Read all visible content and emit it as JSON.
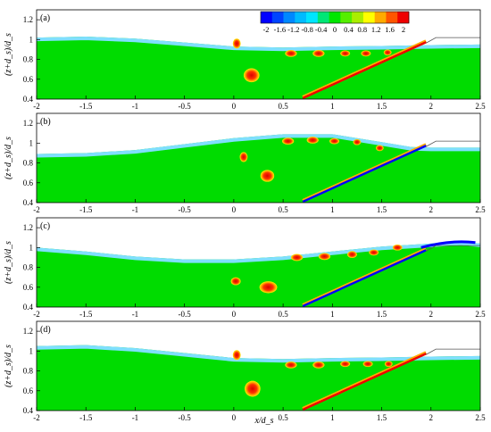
{
  "chart_data": {
    "type": "heatmap",
    "xlabel": "x/d_s",
    "ylabel": "(z+d_s)/d_s",
    "xlim": [
      -2,
      2.5
    ],
    "ylim": [
      0.4,
      1.3
    ],
    "xticks": [
      "-2",
      "-1.5",
      "-1",
      "-0.5",
      "0",
      "0.5",
      "1",
      "1.5",
      "2",
      "2.5"
    ],
    "yticks": [
      "0.4",
      "0.6",
      "0.8",
      "1",
      "1.2"
    ],
    "colorbar": {
      "ticks": [
        "-2",
        "-1.6",
        "-1.2",
        "-0.8",
        "-0.4",
        "0",
        "0.4",
        "0.8",
        "1.2",
        "1.6",
        "2"
      ],
      "colors": [
        "#0000ff",
        "#0044ff",
        "#0088ff",
        "#00bbff",
        "#00e5ff",
        "#00e676",
        "#00e600",
        "#55ee00",
        "#aaee00",
        "#ffff00",
        "#ffaa00",
        "#ff5500",
        "#ee0000"
      ]
    },
    "colors": {
      "background_water": "#00dc00",
      "surface_layer": "#7fdfff",
      "strong_positive": "#ee0000",
      "positive_ring": "#ffa500",
      "strong_negative": "#0000ff"
    },
    "panels": [
      {
        "label": "(a)",
        "surface": [
          [
            -2,
            1.02
          ],
          [
            -1.5,
            1.03
          ],
          [
            -1,
            1.01
          ],
          [
            -0.5,
            0.97
          ],
          [
            0,
            0.93
          ],
          [
            0.5,
            0.92
          ],
          [
            1,
            0.93
          ],
          [
            1.5,
            0.935
          ],
          [
            2,
            0.945
          ],
          [
            2.5,
            0.95
          ]
        ],
        "vortices": [
          {
            "x": 0.03,
            "y": 0.96,
            "rx": 0.04,
            "ry": 0.05
          },
          {
            "x": 0.18,
            "y": 0.64,
            "rx": 0.08,
            "ry": 0.07
          },
          {
            "x": 0.58,
            "y": 0.86,
            "rx": 0.06,
            "ry": 0.035
          },
          {
            "x": 0.86,
            "y": 0.86,
            "rx": 0.06,
            "ry": 0.035
          },
          {
            "x": 1.13,
            "y": 0.86,
            "rx": 0.05,
            "ry": 0.03
          },
          {
            "x": 1.34,
            "y": 0.86,
            "rx": 0.05,
            "ry": 0.03
          },
          {
            "x": 1.56,
            "y": 0.87,
            "rx": 0.04,
            "ry": 0.03
          }
        ],
        "shear_band": {
          "x": [
            0.7,
            1.9
          ],
          "y": [
            0.42,
            0.93
          ],
          "sign": "positive"
        }
      },
      {
        "label": "(b)",
        "surface": [
          [
            -2,
            0.89
          ],
          [
            -1.5,
            0.9
          ],
          [
            -1,
            0.93
          ],
          [
            -0.5,
            0.99
          ],
          [
            0,
            1.05
          ],
          [
            0.5,
            1.09
          ],
          [
            1,
            1.09
          ],
          [
            1.5,
            1.01
          ],
          [
            1.8,
            0.96
          ],
          [
            2,
            0.955
          ],
          [
            2.5,
            0.955
          ]
        ],
        "vortices": [
          {
            "x": 0.1,
            "y": 0.86,
            "rx": 0.04,
            "ry": 0.05
          },
          {
            "x": 0.34,
            "y": 0.67,
            "rx": 0.07,
            "ry": 0.06
          },
          {
            "x": 0.55,
            "y": 1.02,
            "rx": 0.06,
            "ry": 0.035
          },
          {
            "x": 0.8,
            "y": 1.03,
            "rx": 0.06,
            "ry": 0.035
          },
          {
            "x": 1.02,
            "y": 1.02,
            "rx": 0.05,
            "ry": 0.03
          },
          {
            "x": 1.25,
            "y": 1.01,
            "rx": 0.04,
            "ry": 0.03
          },
          {
            "x": 1.48,
            "y": 0.95,
            "rx": 0.04,
            "ry": 0.03
          }
        ],
        "shear_band": {
          "x": [
            0.7,
            1.9
          ],
          "y": [
            0.42,
            0.97
          ],
          "sign": "negative"
        }
      },
      {
        "label": "(c)",
        "surface": [
          [
            -2,
            1.0
          ],
          [
            -1.5,
            0.96
          ],
          [
            -1,
            0.91
          ],
          [
            -0.5,
            0.88
          ],
          [
            0,
            0.88
          ],
          [
            0.5,
            0.91
          ],
          [
            1,
            0.96
          ],
          [
            1.5,
            1.01
          ],
          [
            2,
            1.04
          ],
          [
            2.3,
            1.06
          ],
          [
            2.5,
            1.04
          ]
        ],
        "vortices": [
          {
            "x": 0.02,
            "y": 0.66,
            "rx": 0.05,
            "ry": 0.04
          },
          {
            "x": 0.35,
            "y": 0.6,
            "rx": 0.09,
            "ry": 0.06
          },
          {
            "x": 0.64,
            "y": 0.9,
            "rx": 0.06,
            "ry": 0.035
          },
          {
            "x": 0.92,
            "y": 0.91,
            "rx": 0.06,
            "ry": 0.035
          },
          {
            "x": 1.2,
            "y": 0.93,
            "rx": 0.05,
            "ry": 0.035
          },
          {
            "x": 1.42,
            "y": 0.95,
            "rx": 0.05,
            "ry": 0.03
          },
          {
            "x": 1.66,
            "y": 1.0,
            "rx": 0.05,
            "ry": 0.03
          }
        ],
        "shear_band": {
          "x": [
            0.7,
            2.45
          ],
          "y": [
            0.42,
            1.05
          ],
          "sign": "negative"
        }
      },
      {
        "label": "(d)",
        "surface": [
          [
            -2,
            1.05
          ],
          [
            -1.5,
            1.06
          ],
          [
            -1,
            1.03
          ],
          [
            -0.5,
            0.98
          ],
          [
            0,
            0.93
          ],
          [
            0.5,
            0.92
          ],
          [
            1,
            0.93
          ],
          [
            1.5,
            0.935
          ],
          [
            2,
            0.945
          ],
          [
            2.5,
            0.95
          ]
        ],
        "vortices": [
          {
            "x": 0.03,
            "y": 0.96,
            "rx": 0.04,
            "ry": 0.05
          },
          {
            "x": 0.19,
            "y": 0.62,
            "rx": 0.08,
            "ry": 0.08
          },
          {
            "x": 0.58,
            "y": 0.86,
            "rx": 0.06,
            "ry": 0.035
          },
          {
            "x": 0.86,
            "y": 0.86,
            "rx": 0.06,
            "ry": 0.035
          },
          {
            "x": 1.13,
            "y": 0.87,
            "rx": 0.05,
            "ry": 0.03
          },
          {
            "x": 1.36,
            "y": 0.87,
            "rx": 0.05,
            "ry": 0.03
          },
          {
            "x": 1.57,
            "y": 0.87,
            "rx": 0.04,
            "ry": 0.03
          }
        ],
        "shear_band": {
          "x": [
            0.7,
            1.9
          ],
          "y": [
            0.42,
            0.93
          ],
          "sign": "positive"
        }
      }
    ]
  }
}
